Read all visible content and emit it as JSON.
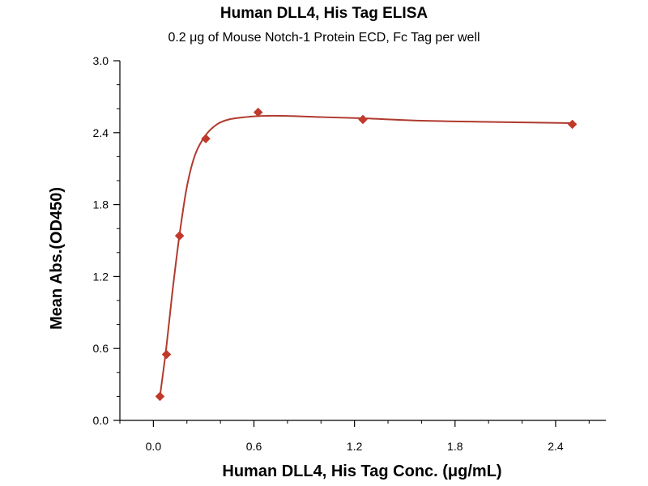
{
  "chart_data": {
    "type": "scatter",
    "title": "Human DLL4, His Tag ELISA",
    "subtitle": "0.2 μg of Mouse Notch-1 Protein ECD, Fc Tag per well",
    "xlabel": "Human DLL4, His Tag Conc. (μg/mL)",
    "ylabel": "Mean Abs.(OD450)",
    "xlim": [
      -0.2,
      2.7
    ],
    "ylim": [
      0.0,
      3.0
    ],
    "x_ticks": [
      0.0,
      0.6,
      1.2,
      1.8,
      2.4
    ],
    "x_tick_labels": [
      "0.0",
      "0.6",
      "1.2",
      "1.8",
      "2.4"
    ],
    "y_ticks": [
      0.0,
      0.6,
      1.2,
      1.8,
      2.4,
      3.0
    ],
    "y_tick_labels": [
      "0.0",
      "0.6",
      "1.2",
      "1.8",
      "2.4",
      "3.0"
    ],
    "grid": false,
    "series": [
      {
        "marker": "diamond",
        "color": "#c0392b",
        "x": [
          0.039,
          0.078,
          0.156,
          0.3125,
          0.625,
          1.25,
          2.5
        ],
        "y": [
          0.2,
          0.55,
          1.54,
          2.35,
          2.57,
          2.51,
          2.47
        ]
      }
    ],
    "fit_curve": {
      "color": "#b03a2e",
      "x": [
        0.039,
        0.06,
        0.078,
        0.1,
        0.12,
        0.156,
        0.2,
        0.25,
        0.3125,
        0.38,
        0.45,
        0.55,
        0.65,
        0.8,
        1.0,
        1.25,
        1.6,
        2.0,
        2.5
      ],
      "y": [
        0.2,
        0.42,
        0.62,
        0.9,
        1.15,
        1.55,
        1.95,
        2.22,
        2.38,
        2.47,
        2.51,
        2.53,
        2.54,
        2.54,
        2.53,
        2.52,
        2.5,
        2.49,
        2.48
      ]
    }
  }
}
